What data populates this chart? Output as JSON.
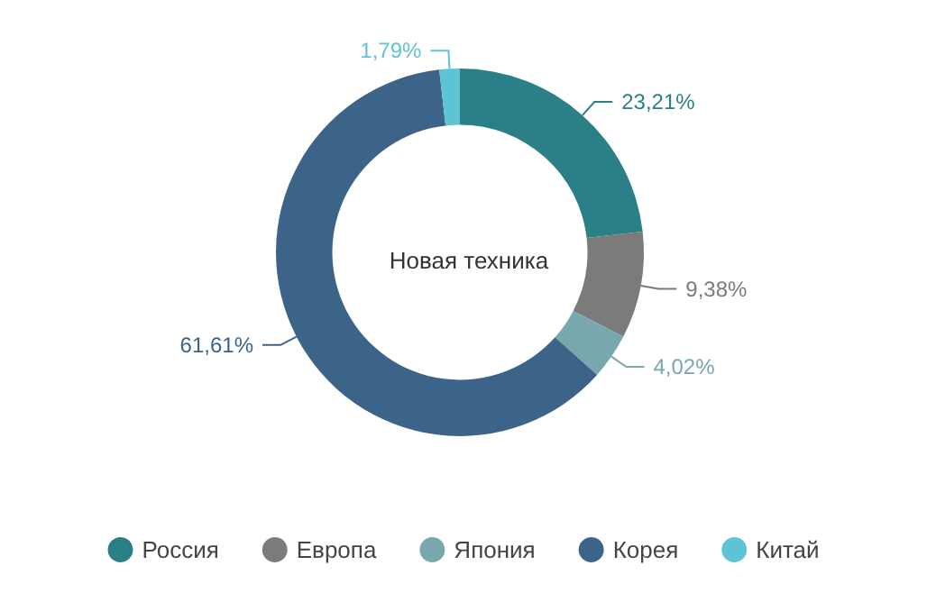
{
  "chart_data": {
    "type": "donut",
    "title": "Новая техника",
    "categories": [
      "Россия",
      "Европа",
      "Япония",
      "Корея",
      "Китай"
    ],
    "values": [
      23.21,
      9.38,
      4.02,
      61.61,
      1.79
    ],
    "value_labels": [
      "23,21%",
      "9,38%",
      "4,02%",
      "61,61%",
      "1,79%"
    ],
    "colors": [
      "#2b8088",
      "#7b7b7b",
      "#78a7ad",
      "#3c6388",
      "#5ec3d2"
    ],
    "legend": "bottom"
  }
}
